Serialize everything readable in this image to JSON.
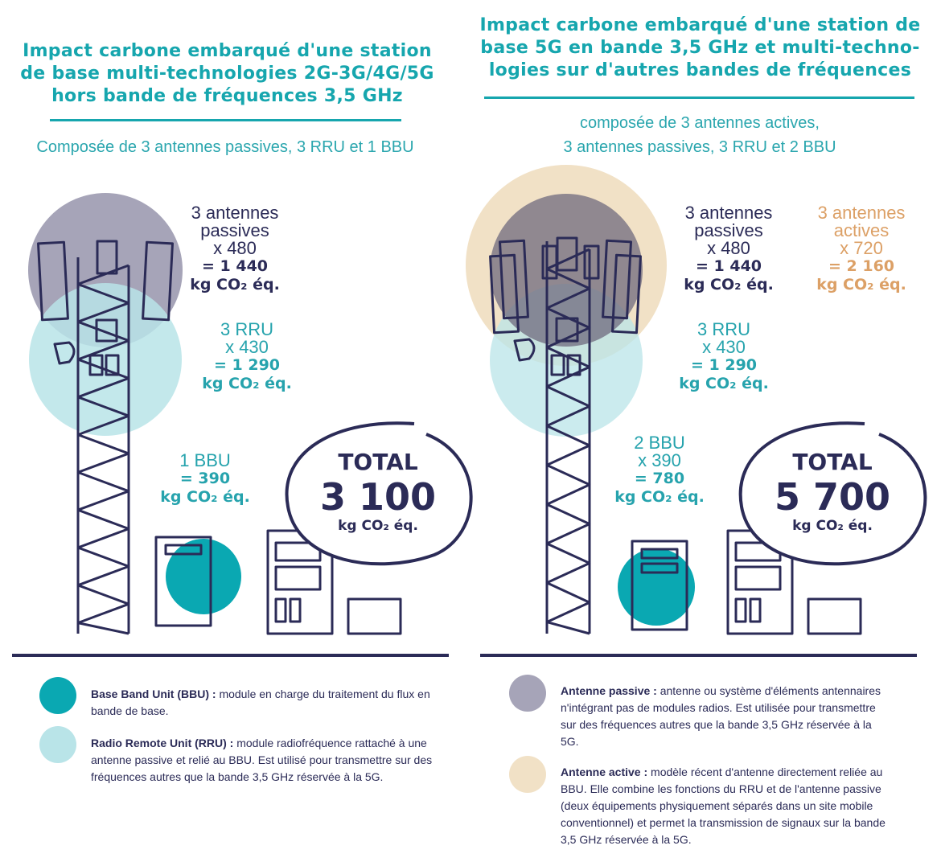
{
  "colors": {
    "teal": "#0aa8b2",
    "light_teal": "#b9e4e8",
    "passive": "#a6a4b8",
    "active": "#f1e1c6",
    "navy": "#2b2b57",
    "orange": "#dca066",
    "title": "#16a6ae"
  },
  "left": {
    "title": [
      "Impact carbone embarqué d'une station",
      "de base multi-technologies 2G-3G/4G/5G",
      "hors bande de fréquences 3,5 GHz"
    ],
    "subtitle": "Composée de 3 antennes passives, 3 RRU et 1 BBU",
    "passive": {
      "name": [
        "3 antennes",
        "passives"
      ],
      "mult": "x 480",
      "result": "= 1 440",
      "unit": "kg CO₂ éq."
    },
    "rru": {
      "name": "3 RRU",
      "mult": "x 430",
      "result": "= 1 290",
      "unit": "kg CO₂ éq."
    },
    "bbu": {
      "name": "1 BBU",
      "result": "= 390",
      "unit": "kg CO₂ éq."
    },
    "total": {
      "label": "TOTAL",
      "value": "3 100",
      "unit": "kg CO₂ éq."
    }
  },
  "right": {
    "title": [
      "Impact carbone embarqué d'une station de",
      "base 5G en bande 3,5 GHz et multi-techno-",
      "logies sur d'autres bandes de fréquences"
    ],
    "subtitle": [
      "composée de 3 antennes actives,",
      "3 antennes passives, 3 RRU et 2 BBU"
    ],
    "passive": {
      "name": [
        "3 antennes",
        "passives"
      ],
      "mult": "x 480",
      "result": "= 1 440",
      "unit": "kg CO₂ éq."
    },
    "active": {
      "name": [
        "3 antennes",
        "actives"
      ],
      "mult": "x 720",
      "result": "= 2 160",
      "unit": "kg CO₂ éq."
    },
    "rru": {
      "name": "3 RRU",
      "mult": "x 430",
      "result": "= 1 290",
      "unit": "kg CO₂ éq."
    },
    "bbu": {
      "name": "2 BBU",
      "mult": "x 390",
      "result": "= 780",
      "unit": "kg CO₂ éq."
    },
    "total": {
      "label": "TOTAL",
      "value": "5 700",
      "unit": "kg CO₂ éq."
    }
  },
  "legend": {
    "bbu": {
      "term": "Base Band Unit (BBU) :",
      "text": " module en charge du traitement du flux en bande de base."
    },
    "rru": {
      "term": "Radio Remote Unit (RRU) :",
      "text": " module radiofréquence rattaché à une antenne passive et relié au BBU. Est utilisé pour transmettre sur des fréquences autres que la bande 3,5 GHz réservée à la 5G."
    },
    "passive": {
      "term": "Antenne passive :",
      "text": " antenne ou système d'éléments antennaires n'intégrant pas de modules radios. Est utilisée pour transmettre sur des fréquences autres que la bande 3,5 GHz réservée à la 5G."
    },
    "active": {
      "term": "Antenne active :",
      "text": " modèle récent d'antenne directement reliée au BBU. Elle combine les fonctions du RRU et de l'antenne passive (deux équipements physiquement séparés dans un site mobile conventionnel) et permet la transmission de signaux sur la bande 3,5 GHz réservée à la 5G."
    }
  }
}
